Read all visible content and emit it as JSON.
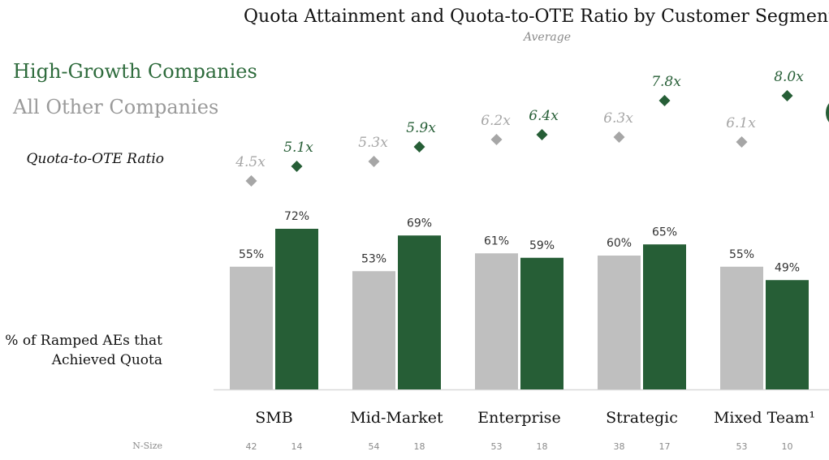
{
  "chart_data": {
    "type": "bar",
    "title": "Quota Attainment and Quota-to-OTE Ratio by Customer Segment",
    "subtitle": "Average",
    "categories": [
      "SMB",
      "Mid-Market",
      "Enterprise",
      "Strategic",
      "Mixed Team¹"
    ],
    "series": [
      {
        "name": "All Other Companies",
        "color": "#bfbfbf",
        "values": [
          55,
          53,
          61,
          60,
          55
        ],
        "labels": [
          "55%",
          "53%",
          "61%",
          "60%",
          "55%"
        ],
        "ratio": [
          4.5,
          5.3,
          6.2,
          6.3,
          6.1
        ],
        "ratio_labels": [
          "4.5x",
          "5.3x",
          "6.2x",
          "6.3x",
          "6.1x"
        ],
        "ratio_color": "#a6a6a6",
        "n_size": [
          "42",
          "54",
          "53",
          "38",
          "53"
        ]
      },
      {
        "name": "High-Growth Companies",
        "color": "#265e36",
        "values": [
          72,
          69,
          59,
          65,
          49
        ],
        "labels": [
          "72%",
          "69%",
          "59%",
          "65%",
          "49%"
        ],
        "ratio": [
          5.1,
          5.9,
          6.4,
          7.8,
          8.0
        ],
        "ratio_labels": [
          "5.1x",
          "5.9x",
          "6.4x",
          "7.8x",
          "8.0x"
        ],
        "ratio_color": "#265e36",
        "n_size": [
          "14",
          "18",
          "18",
          "17",
          "10"
        ]
      }
    ],
    "ylabel": "% of Ramped AEs that Achieved Quota",
    "ratio_axis_label": "Quota-to-OTE Ratio",
    "n_size_label": "N-Size",
    "ylim": [
      0,
      100
    ]
  },
  "legend": {
    "high_growth": "High-Growth Companies",
    "other": "All Other Companies"
  },
  "labels": {
    "ratio": "Quota-to-OTE Ratio",
    "quota_line1": "% of Ramped AEs that",
    "quota_line2": "Achieved Quota",
    "n_size": "N-Size"
  }
}
